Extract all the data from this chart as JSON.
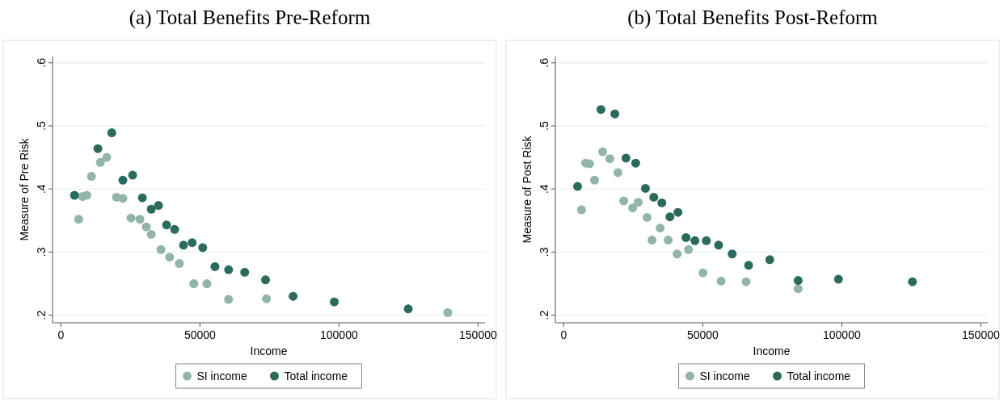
{
  "chart_data": [
    {
      "type": "scatter",
      "title": "(a) Total Benefits Pre-Reform",
      "xlabel": "Income",
      "ylabel": "Measure of Pre Risk",
      "xlim": [
        -3000,
        152500
      ],
      "xticks": [
        0,
        50000,
        100000,
        150000
      ],
      "ylim": [
        0.188,
        0.61
      ],
      "yticks": [
        {
          "value": 0.2,
          "label": ".2"
        },
        {
          "value": 0.3,
          "label": ".3"
        },
        {
          "value": 0.4,
          "label": ".4"
        },
        {
          "value": 0.5,
          "label": ".5"
        },
        {
          "value": 0.6,
          "label": ".6"
        }
      ],
      "grid": "y",
      "legend": "bottom",
      "marker": "circle",
      "series": [
        {
          "name": "SI income",
          "color": "#93b4aa",
          "x": [
            6400,
            7800,
            9300,
            11000,
            14200,
            16500,
            20000,
            22300,
            25200,
            28400,
            30700,
            32500,
            36000,
            39100,
            42600,
            47800,
            52500,
            60300,
            73900,
            139100
          ],
          "values": [
            0.352,
            0.388,
            0.39,
            0.42,
            0.442,
            0.45,
            0.387,
            0.385,
            0.354,
            0.352,
            0.34,
            0.328,
            0.304,
            0.292,
            0.282,
            0.25,
            0.25,
            0.225,
            0.226,
            0.204
          ]
        },
        {
          "name": "Total income",
          "color": "#2a6b5e",
          "x": [
            4900,
            13300,
            18300,
            22300,
            25800,
            29300,
            32500,
            35100,
            38000,
            40900,
            44100,
            47200,
            51000,
            55400,
            60300,
            66100,
            73600,
            83500,
            98300,
            124900
          ],
          "values": [
            0.39,
            0.464,
            0.489,
            0.414,
            0.422,
            0.386,
            0.368,
            0.374,
            0.343,
            0.336,
            0.311,
            0.315,
            0.307,
            0.277,
            0.272,
            0.268,
            0.256,
            0.23,
            0.221,
            0.21
          ]
        }
      ]
    },
    {
      "type": "scatter",
      "title": "(b) Total Benefits Post-Reform",
      "xlabel": "Income",
      "ylabel": "Measure of Post Risk",
      "xlim": [
        -3000,
        152500
      ],
      "xticks": [
        0,
        50000,
        100000,
        150000
      ],
      "ylim": [
        0.188,
        0.61
      ],
      "yticks": [
        {
          "value": 0.2,
          "label": ".2"
        },
        {
          "value": 0.3,
          "label": ".3"
        },
        {
          "value": 0.4,
          "label": ".4"
        },
        {
          "value": 0.5,
          "label": ".5"
        },
        {
          "value": 0.6,
          "label": ".6"
        }
      ],
      "grid": "y",
      "legend": "bottom",
      "marker": "circle",
      "series": [
        {
          "name": "SI income",
          "color": "#93b4aa",
          "x": [
            6400,
            7900,
            9300,
            11100,
            14000,
            16600,
            19500,
            21600,
            24800,
            26800,
            30000,
            31800,
            34700,
            37600,
            40800,
            44900,
            50100,
            56600,
            65600,
            84300
          ],
          "values": [
            0.367,
            0.441,
            0.44,
            0.414,
            0.459,
            0.448,
            0.426,
            0.381,
            0.37,
            0.379,
            0.355,
            0.319,
            0.338,
            0.319,
            0.297,
            0.304,
            0.267,
            0.254,
            0.253,
            0.242
          ]
        },
        {
          "name": "Total income",
          "color": "#2a6b5e",
          "x": [
            5000,
            13400,
            18400,
            22400,
            25900,
            29400,
            32400,
            35300,
            38200,
            41100,
            44000,
            47200,
            51300,
            55700,
            60600,
            66500,
            74100,
            84300,
            98800,
            125400
          ],
          "values": [
            0.404,
            0.526,
            0.519,
            0.449,
            0.441,
            0.401,
            0.387,
            0.378,
            0.356,
            0.363,
            0.323,
            0.318,
            0.318,
            0.311,
            0.297,
            0.279,
            0.288,
            0.255,
            0.257,
            0.253
          ]
        }
      ]
    }
  ]
}
